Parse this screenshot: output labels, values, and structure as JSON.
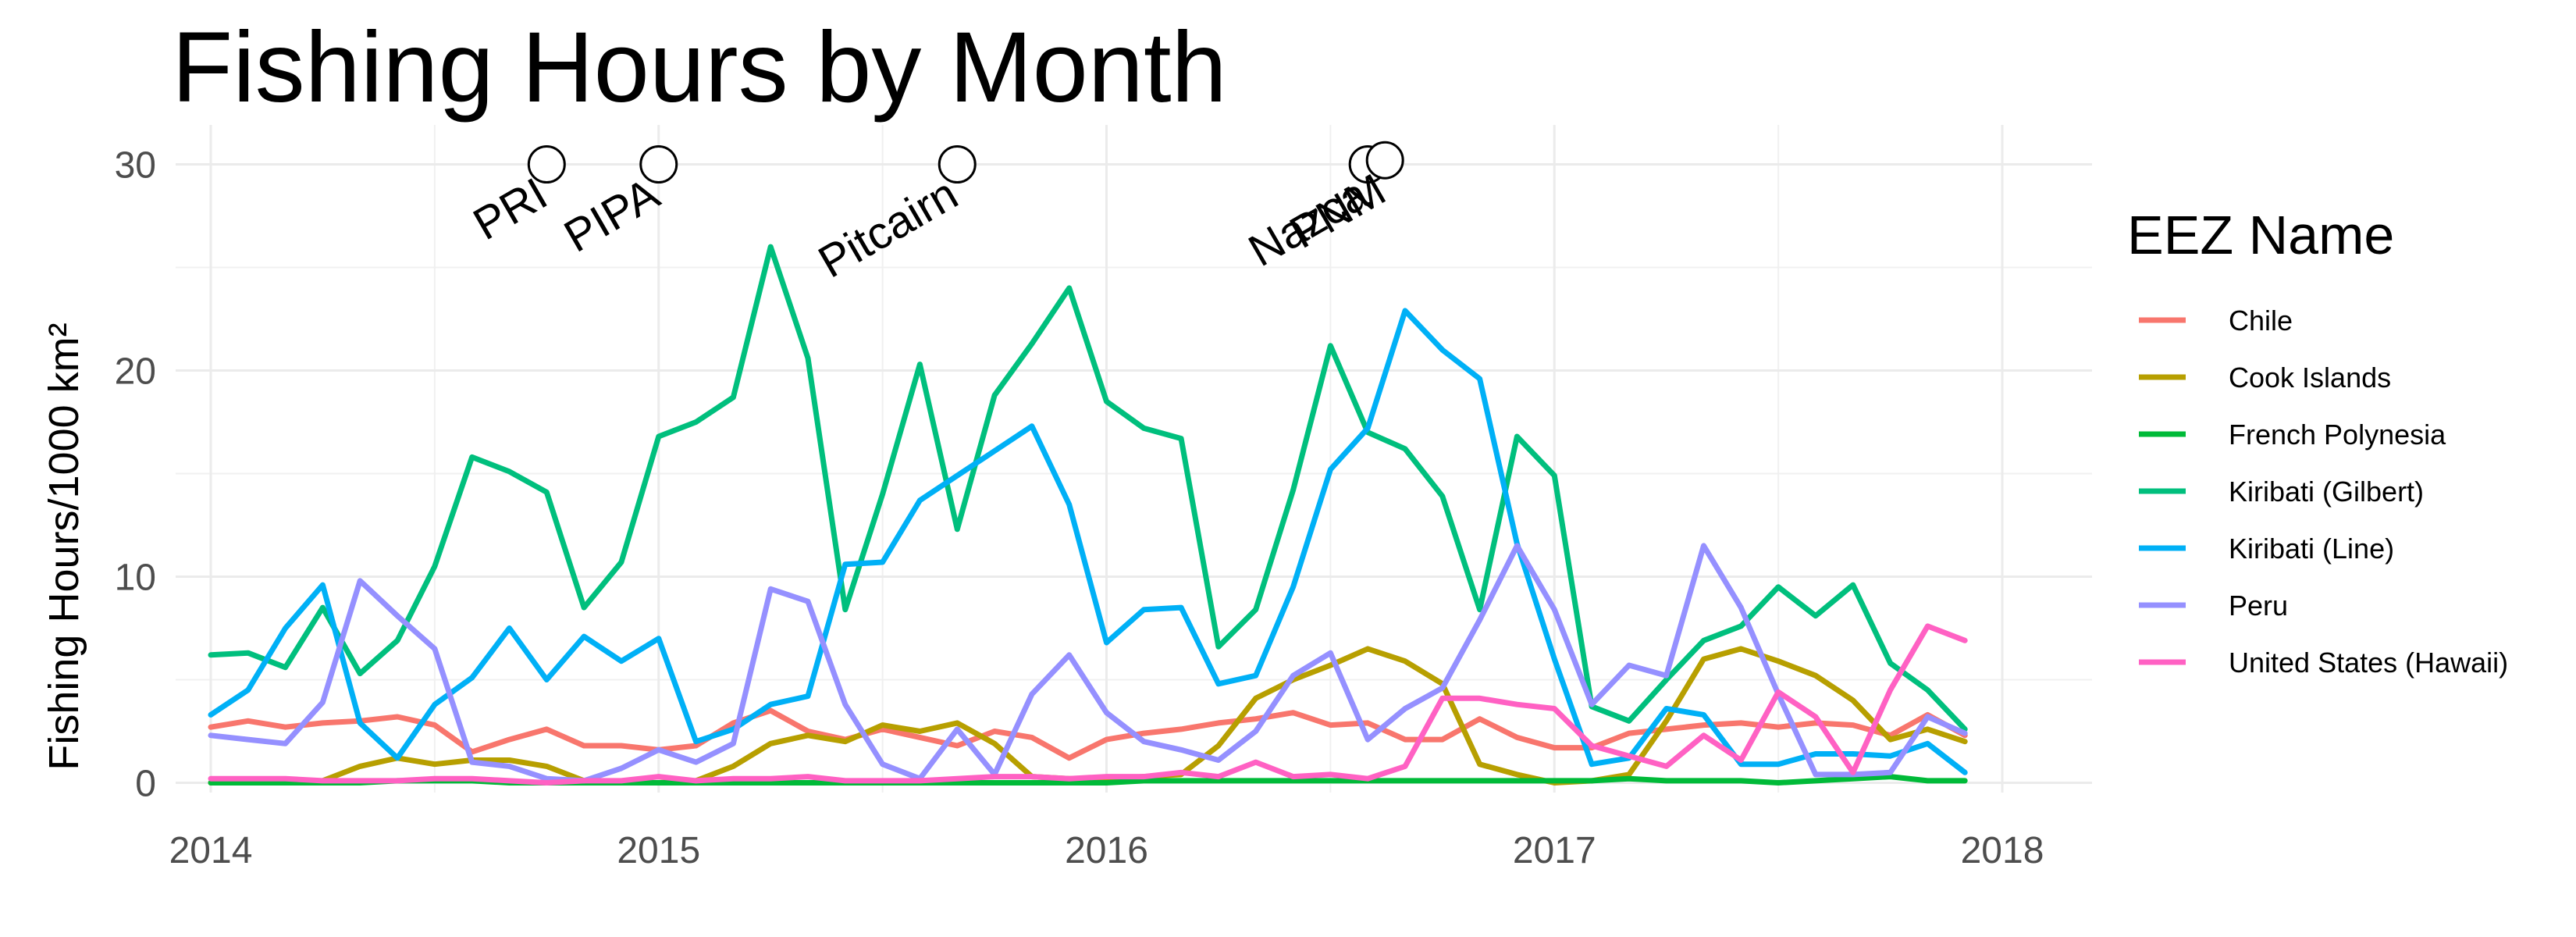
{
  "chart_data": {
    "type": "line",
    "title": "Fishing Hours by Month",
    "xlabel": "",
    "ylabel": "Fishing Hours/1000 km²",
    "xlim": [
      "2014-01",
      "2018-01"
    ],
    "ylim": [
      0,
      30
    ],
    "x_ticks": [
      "2014",
      "2015",
      "2016",
      "2017",
      "2018"
    ],
    "y_ticks": [
      0,
      10,
      20,
      30
    ],
    "grid": true,
    "legend_title": "EEZ Name",
    "legend_position": "right",
    "x": [
      "2014-01",
      "2014-02",
      "2014-03",
      "2014-04",
      "2014-05",
      "2014-06",
      "2014-07",
      "2014-08",
      "2014-09",
      "2014-10",
      "2014-11",
      "2014-12",
      "2015-01",
      "2015-02",
      "2015-03",
      "2015-04",
      "2015-05",
      "2015-06",
      "2015-07",
      "2015-08",
      "2015-09",
      "2015-10",
      "2015-11",
      "2015-12",
      "2016-01",
      "2016-02",
      "2016-03",
      "2016-04",
      "2016-05",
      "2016-06",
      "2016-07",
      "2016-08",
      "2016-09",
      "2016-10",
      "2016-11",
      "2016-12",
      "2017-01",
      "2017-02",
      "2017-03",
      "2017-04",
      "2017-05",
      "2017-06",
      "2017-07",
      "2017-08",
      "2017-09",
      "2017-10",
      "2017-11",
      "2017-12"
    ],
    "series": [
      {
        "name": "Chile",
        "color": "#F8766D",
        "values": [
          2.7,
          3.0,
          2.7,
          2.9,
          3.0,
          3.2,
          2.8,
          1.5,
          2.1,
          2.6,
          1.8,
          1.8,
          1.6,
          1.8,
          2.9,
          3.5,
          2.5,
          2.1,
          2.6,
          2.2,
          1.8,
          2.5,
          2.2,
          1.2,
          2.1,
          2.4,
          2.6,
          2.9,
          3.1,
          3.4,
          2.8,
          2.9,
          2.1,
          2.1,
          3.1,
          2.2,
          1.7,
          1.7,
          2.4,
          2.6,
          2.8,
          2.9,
          2.7,
          2.9,
          2.8,
          2.3,
          3.3,
          2.3
        ]
      },
      {
        "name": "Cook Islands",
        "color": "#B79F00",
        "values": [
          0.0,
          0.0,
          0.0,
          0.1,
          0.8,
          1.2,
          0.9,
          1.1,
          1.1,
          0.8,
          0.1,
          0.0,
          0.0,
          0.1,
          0.8,
          1.9,
          2.3,
          2.0,
          2.8,
          2.5,
          2.9,
          1.9,
          0.3,
          0.2,
          0.2,
          0.3,
          0.4,
          1.8,
          4.1,
          5.0,
          5.7,
          6.5,
          5.9,
          4.8,
          0.9,
          0.4,
          0.0,
          0.1,
          0.4,
          3.0,
          6.0,
          6.5,
          5.9,
          5.2,
          4.0,
          2.1,
          2.6,
          2.0
        ]
      },
      {
        "name": "French Polynesia",
        "color": "#00BA38",
        "values": [
          0.0,
          0.0,
          0.0,
          0.0,
          0.0,
          0.1,
          0.1,
          0.1,
          0.0,
          0.0,
          0.0,
          0.0,
          0.0,
          0.0,
          0.0,
          0.0,
          0.0,
          0.0,
          0.0,
          0.0,
          0.0,
          0.0,
          0.0,
          0.0,
          0.0,
          0.1,
          0.1,
          0.1,
          0.1,
          0.1,
          0.1,
          0.1,
          0.1,
          0.1,
          0.1,
          0.1,
          0.1,
          0.1,
          0.2,
          0.1,
          0.1,
          0.1,
          0.0,
          0.1,
          0.2,
          0.3,
          0.1,
          0.1
        ]
      },
      {
        "name": "Kiribati (Gilbert)",
        "color": "#00BF7D",
        "values": [
          6.2,
          6.3,
          5.6,
          8.5,
          5.3,
          6.9,
          10.5,
          15.8,
          15.1,
          14.1,
          8.5,
          10.7,
          16.8,
          17.5,
          18.7,
          26.0,
          20.6,
          8.4,
          14.0,
          20.3,
          12.3,
          18.8,
          21.3,
          24.0,
          18.5,
          17.2,
          16.7,
          6.6,
          8.4,
          14.2,
          21.2,
          17.0,
          16.2,
          13.9,
          8.4,
          16.8,
          14.9,
          3.7,
          3.0,
          5.0,
          6.9,
          7.6,
          9.5,
          8.1,
          9.6,
          5.8,
          4.5,
          2.6
        ]
      },
      {
        "name": "Kiribati (Line)",
        "color": "#00B0F6",
        "values": [
          3.3,
          4.5,
          7.5,
          9.6,
          2.9,
          1.2,
          3.8,
          5.1,
          7.5,
          5.0,
          7.1,
          5.9,
          7.0,
          2.0,
          2.6,
          3.8,
          4.2,
          10.6,
          10.7,
          13.7,
          14.9,
          16.1,
          17.3,
          13.5,
          6.8,
          8.4,
          8.5,
          4.8,
          5.2,
          9.5,
          15.2,
          17.2,
          22.9,
          21.0,
          19.6,
          11.6,
          6.0,
          0.9,
          1.2,
          3.6,
          3.3,
          0.9,
          0.9,
          1.4,
          1.4,
          1.3,
          1.9,
          0.5
        ]
      },
      {
        "name": "Peru",
        "color": "#9590FF",
        "values": [
          2.3,
          2.1,
          1.9,
          3.9,
          9.8,
          8.1,
          6.5,
          1.0,
          0.8,
          0.2,
          0.1,
          0.7,
          1.6,
          1.0,
          1.9,
          9.4,
          8.8,
          3.8,
          0.9,
          0.2,
          2.6,
          0.4,
          4.3,
          6.2,
          3.4,
          2.0,
          1.6,
          1.1,
          2.5,
          5.2,
          6.3,
          2.1,
          3.6,
          4.6,
          7.9,
          11.5,
          8.4,
          3.8,
          5.7,
          5.2,
          11.5,
          8.5,
          4.3,
          0.4,
          0.4,
          0.5,
          3.2,
          2.4
        ]
      },
      {
        "name": "United States (Hawaii)",
        "color": "#FF61C3",
        "values": [
          0.2,
          0.2,
          0.2,
          0.1,
          0.1,
          0.1,
          0.2,
          0.2,
          0.1,
          0.0,
          0.1,
          0.1,
          0.3,
          0.1,
          0.2,
          0.2,
          0.3,
          0.1,
          0.1,
          0.1,
          0.2,
          0.3,
          0.3,
          0.2,
          0.3,
          0.3,
          0.5,
          0.3,
          1.0,
          0.3,
          0.4,
          0.2,
          0.8,
          4.1,
          4.1,
          3.8,
          3.6,
          1.8,
          1.3,
          0.8,
          2.3,
          1.1,
          4.4,
          3.2,
          0.5,
          4.5,
          7.6,
          6.9
        ]
      }
    ],
    "annotations": [
      {
        "label": "PRI",
        "x": "2014-10",
        "y": 30
      },
      {
        "label": "PIPA",
        "x": "2015-01",
        "y": 30
      },
      {
        "label": "Pitcairn",
        "x": "2015-09",
        "y": 30
      },
      {
        "label": "Nazca",
        "x": "2016-08",
        "y": 30
      },
      {
        "label": "PNM",
        "x": "2016-08-15",
        "y": 30.2
      }
    ]
  }
}
